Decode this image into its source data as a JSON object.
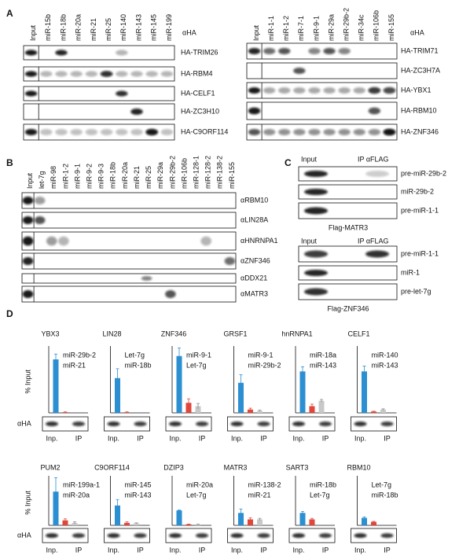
{
  "panel_a": {
    "label": "A",
    "left": {
      "antibody": "αHA",
      "columns": [
        "Input",
        "miR-15b",
        "miR-18b",
        "miR-20a",
        "miR-21",
        "miR-25",
        "miR-140",
        "miR-143",
        "miR-145",
        "miR-199"
      ],
      "rows": [
        "HA-TRIM26",
        "HA-RBM4",
        "HA-CELF1",
        "HA-ZC3H10",
        "HA-C9ORF114"
      ]
    },
    "right": {
      "antibody": "αHA",
      "columns": [
        "Input",
        "miR-1-1",
        "miR-1-2",
        "miR-7-1",
        "miR-9-1",
        "miR-29a",
        "miR-29b-2",
        "miR-34c",
        "miR-106b",
        "miR-155"
      ],
      "rows": [
        "HA-TRIM71",
        "HA-ZC3H7A",
        "HA-YBX1",
        "HA-RBM10",
        "HA-ZNF346"
      ]
    }
  },
  "panel_b": {
    "label": "B",
    "columns": [
      "Input",
      "let-7g",
      "miR-98",
      "miR-1-2",
      "miR-9-1",
      "miR-9-2",
      "miR-9-3",
      "miR-18b",
      "miR-20a",
      "miR-21",
      "miR-25",
      "miR-29a",
      "miR-29b-2",
      "miR-106b",
      "miR-128-1",
      "miR-128-2",
      "miR-138-2",
      "miR-155"
    ],
    "rows": [
      "αRBM10",
      "αLIN28A",
      "αHNRNPA1",
      "αZNF346",
      "αDDX21",
      "αMATR3"
    ]
  },
  "panel_c": {
    "label": "C",
    "groups": [
      {
        "input": "Input",
        "ip": "IP αFLAG",
        "rows": [
          "pre-miR-29b-2",
          "miR-29b-2",
          "pre-miR-1-1"
        ],
        "construct": "Flag-MATR3"
      },
      {
        "input": "Input",
        "ip": "IP αFLAG",
        "rows": [
          "pre-miR-1-1",
          "miR-1",
          "pre-let-7g"
        ],
        "construct": "Flag-ZNF346"
      }
    ]
  },
  "panel_d": {
    "label": "D",
    "y_label": "% Input",
    "blot_label": "αHA",
    "lane_labels": [
      "Inp.",
      "IP"
    ]
  },
  "chart_data": [
    {
      "type": "bar",
      "title": "YBX3",
      "ylim": [
        0,
        100
      ],
      "series": [
        {
          "name": "miR-29b-2",
          "color": "#2b8fd1",
          "values": [
            80
          ],
          "errors": [
            8
          ]
        },
        {
          "name": "miR-21",
          "color": "#e0463a",
          "values": [
            1
          ],
          "errors": [
            0.5
          ]
        }
      ]
    },
    {
      "type": "bar",
      "title": "LIN28",
      "ylim": [
        0,
        100
      ],
      "series": [
        {
          "name": "Let-7g",
          "color": "#2b8fd1",
          "values": [
            52
          ],
          "errors": [
            14
          ]
        },
        {
          "name": "miR-18b",
          "color": "#e0463a",
          "values": [
            1
          ],
          "errors": [
            0.5
          ]
        }
      ]
    },
    {
      "type": "bar",
      "title": "ZNF346",
      "ylim": [
        0,
        100
      ],
      "series": [
        {
          "name": "miR-9-1",
          "color": "#2b8fd1",
          "values": [
            85
          ],
          "errors": [
            12
          ]
        },
        {
          "name": "Let-7g",
          "color": "#e0463a",
          "values": [
            15
          ],
          "errors": [
            6
          ]
        },
        {
          "color": "#c8c8c8",
          "values": [
            10
          ],
          "errors": [
            4
          ]
        }
      ]
    },
    {
      "type": "bar",
      "title": "GRSF1",
      "ylim": [
        0,
        100
      ],
      "series": [
        {
          "name": "miR-9-1",
          "color": "#2b8fd1",
          "values": [
            45
          ],
          "errors": [
            12
          ]
        },
        {
          "name": "miR-29b-2",
          "color": "#e0463a",
          "values": [
            5
          ],
          "errors": [
            2
          ]
        },
        {
          "color": "#c8c8c8",
          "values": [
            3
          ],
          "errors": [
            1
          ]
        }
      ]
    },
    {
      "type": "bar",
      "title": "hnRNPA1",
      "ylim": [
        0,
        100
      ],
      "series": [
        {
          "name": "miR-18a",
          "color": "#2b8fd1",
          "values": [
            62
          ],
          "errors": [
            7
          ]
        },
        {
          "name": "miR-143",
          "color": "#e0463a",
          "values": [
            10
          ],
          "errors": [
            3
          ]
        },
        {
          "color": "#c8c8c8",
          "values": [
            18
          ],
          "errors": [
            2
          ]
        }
      ]
    },
    {
      "type": "bar",
      "title": "CELF1",
      "ylim": [
        0,
        100
      ],
      "series": [
        {
          "name": "miR-140",
          "color": "#2b8fd1",
          "values": [
            62
          ],
          "errors": [
            8
          ]
        },
        {
          "name": "miR-143",
          "color": "#e0463a",
          "values": [
            2
          ],
          "errors": [
            0.5
          ]
        },
        {
          "color": "#c8c8c8",
          "values": [
            5
          ],
          "errors": [
            1
          ]
        }
      ]
    },
    {
      "type": "bar",
      "title": "PUM2",
      "ylim": [
        0,
        100
      ],
      "series": [
        {
          "name": "miR-199a-1",
          "color": "#2b8fd1",
          "values": [
            68
          ],
          "errors": [
            28
          ]
        },
        {
          "name": "miR-20a",
          "color": "#e0463a",
          "values": [
            10
          ],
          "errors": [
            3
          ]
        },
        {
          "color": "#c8c8c8",
          "values": [
            5
          ],
          "errors": [
            2
          ]
        }
      ]
    },
    {
      "type": "bar",
      "title": "C9ORF114",
      "ylim": [
        0,
        100
      ],
      "series": [
        {
          "name": "miR-145",
          "color": "#2b8fd1",
          "values": [
            40
          ],
          "errors": [
            12
          ]
        },
        {
          "name": "miR-143",
          "color": "#e0463a",
          "values": [
            5
          ],
          "errors": [
            2
          ]
        },
        {
          "color": "#c8c8c8",
          "values": [
            4
          ],
          "errors": [
            1
          ]
        }
      ]
    },
    {
      "type": "bar",
      "title": "DZIP3",
      "ylim": [
        0,
        100
      ],
      "series": [
        {
          "name": "miR-20a",
          "color": "#2b8fd1",
          "values": [
            30
          ],
          "errors": [
            1
          ]
        },
        {
          "name": "Let-7g",
          "color": "#e0463a",
          "values": [
            2
          ],
          "errors": [
            0.5
          ]
        },
        {
          "color": "#c8c8c8",
          "values": [
            2
          ],
          "errors": [
            0.5
          ]
        }
      ]
    },
    {
      "type": "bar",
      "title": "MATR3",
      "ylim": [
        0,
        100
      ],
      "series": [
        {
          "name": "miR-138-2",
          "color": "#2b8fd1",
          "values": [
            25
          ],
          "errors": [
            8
          ]
        },
        {
          "name": "miR-21",
          "color": "#e0463a",
          "values": [
            12
          ],
          "errors": [
            3
          ]
        },
        {
          "color": "#c8c8c8",
          "values": [
            12
          ],
          "errors": [
            2
          ]
        }
      ]
    },
    {
      "type": "bar",
      "title": "SART3",
      "ylim": [
        0,
        100
      ],
      "series": [
        {
          "name": "miR-18b",
          "color": "#2b8fd1",
          "values": [
            25
          ],
          "errors": [
            3
          ]
        },
        {
          "name": "Let-7g",
          "color": "#e0463a",
          "values": [
            12
          ],
          "errors": [
            2
          ]
        }
      ]
    },
    {
      "type": "bar",
      "title": "RBM10",
      "ylim": [
        0,
        100
      ],
      "series": [
        {
          "name": "Let-7g",
          "color": "#2b8fd1",
          "values": [
            15
          ],
          "errors": [
            2
          ]
        },
        {
          "name": "miR-18b",
          "color": "#e0463a",
          "values": [
            7
          ],
          "errors": [
            1
          ]
        }
      ]
    }
  ]
}
